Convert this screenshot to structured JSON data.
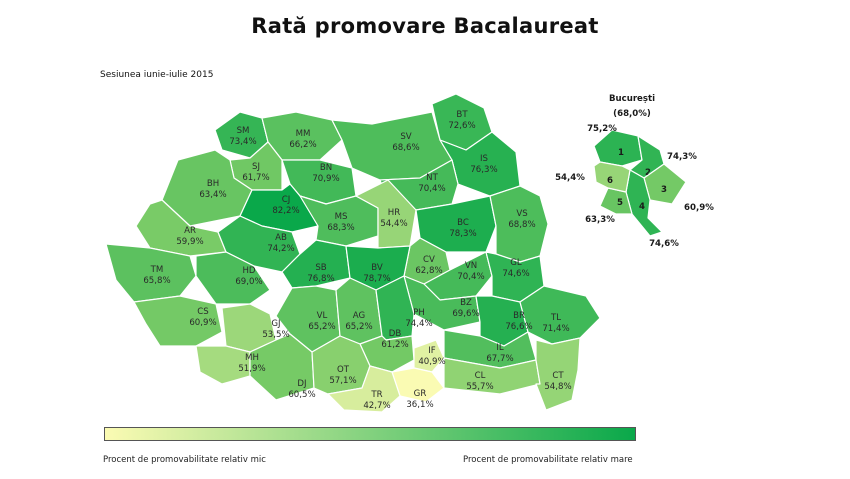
{
  "title": "Rată promovare Bacalaureat",
  "subtitle": "Sesiunea iunie-iulie 2015",
  "legend": {
    "low_label": "Procent de promovabilitate relativ mic",
    "high_label": "Procent de promovabilitate relativ mare",
    "low_color": "#fbfbb3",
    "high_color": "#0aa84a"
  },
  "counties": [
    {
      "code": "SM",
      "value": "73,4%"
    },
    {
      "code": "MM",
      "value": "66,2%"
    },
    {
      "code": "BT",
      "value": "72,6%"
    },
    {
      "code": "SV",
      "value": "68,6%"
    },
    {
      "code": "IS",
      "value": "76,3%"
    },
    {
      "code": "SJ",
      "value": "61,7%"
    },
    {
      "code": "BN",
      "value": "70,9%"
    },
    {
      "code": "NT",
      "value": "70,4%"
    },
    {
      "code": "BH",
      "value": "63,4%"
    },
    {
      "code": "CJ",
      "value": "82,2%"
    },
    {
      "code": "MS",
      "value": "68,3%"
    },
    {
      "code": "HR",
      "value": "54,4%"
    },
    {
      "code": "BC",
      "value": "78,3%"
    },
    {
      "code": "VS",
      "value": "68,8%"
    },
    {
      "code": "AR",
      "value": "59,9%"
    },
    {
      "code": "AB",
      "value": "74,2%"
    },
    {
      "code": "CV",
      "value": "62,8%"
    },
    {
      "code": "TM",
      "value": "65,8%"
    },
    {
      "code": "HD",
      "value": "69,0%"
    },
    {
      "code": "SB",
      "value": "76,8%"
    },
    {
      "code": "BV",
      "value": "78,7%"
    },
    {
      "code": "VN",
      "value": "70,4%"
    },
    {
      "code": "GL",
      "value": "74,6%"
    },
    {
      "code": "BZ",
      "value": "69,6%"
    },
    {
      "code": "CS",
      "value": "60,9%"
    },
    {
      "code": "GJ",
      "value": "53,5%"
    },
    {
      "code": "VL",
      "value": "65,2%"
    },
    {
      "code": "AG",
      "value": "65,2%"
    },
    {
      "code": "PH",
      "value": "74,4%"
    },
    {
      "code": "BR",
      "value": "76,6%"
    },
    {
      "code": "TL",
      "value": "71,4%"
    },
    {
      "code": "DB",
      "value": "61,2%"
    },
    {
      "code": "MH",
      "value": "51,9%"
    },
    {
      "code": "IF",
      "value": "40,9%"
    },
    {
      "code": "IL",
      "value": "67,7%"
    },
    {
      "code": "DJ",
      "value": "60,5%"
    },
    {
      "code": "OT",
      "value": "57,1%"
    },
    {
      "code": "GR",
      "value": "36,1%"
    },
    {
      "code": "CL",
      "value": "55,7%"
    },
    {
      "code": "TR",
      "value": "42,7%"
    },
    {
      "code": "CT",
      "value": "54,8%"
    }
  ],
  "bucharest": {
    "name": "București",
    "value": "(68,0%)",
    "sectors": [
      {
        "num": "1",
        "value": "75,2%"
      },
      {
        "num": "2",
        "value": "74,3%"
      },
      {
        "num": "3",
        "value": "60,9%"
      },
      {
        "num": "4",
        "value": "74,6%"
      },
      {
        "num": "5",
        "value": "63,3%"
      },
      {
        "num": "6",
        "value": "54,4%"
      }
    ]
  }
}
